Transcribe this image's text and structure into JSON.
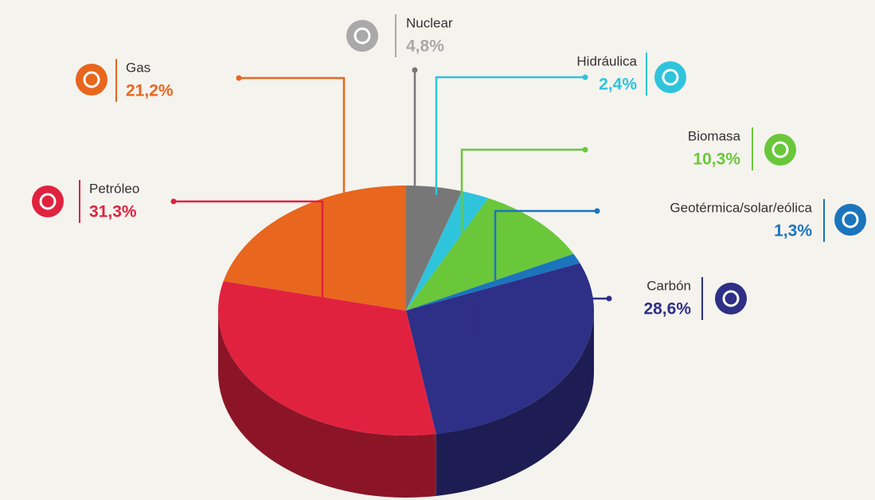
{
  "chart_data": {
    "type": "pie",
    "categories": [
      "Nuclear",
      "Hidráulica",
      "Biomasa",
      "Geotérmica/solar/eólica",
      "Carbón",
      "Petróleo",
      "Gas"
    ],
    "values": [
      4.8,
      2.4,
      10.3,
      1.3,
      28.6,
      31.3,
      21.2
    ],
    "value_labels": [
      "4,8%",
      "2,4%",
      "10,3%",
      "1,3%",
      "28,6%",
      "31,3%",
      "21,2%"
    ],
    "colors": [
      "#777777",
      "#2ec4dc",
      "#6ac73a",
      "#1b75bc",
      "#2e2f86",
      "#e0223f",
      "#e8661e"
    ],
    "label_colors": [
      "#a9a9a9",
      "#2ec4dc",
      "#6ac73a",
      "#1b75bc",
      "#2e2f86",
      "#e0223f",
      "#e8661e"
    ]
  }
}
